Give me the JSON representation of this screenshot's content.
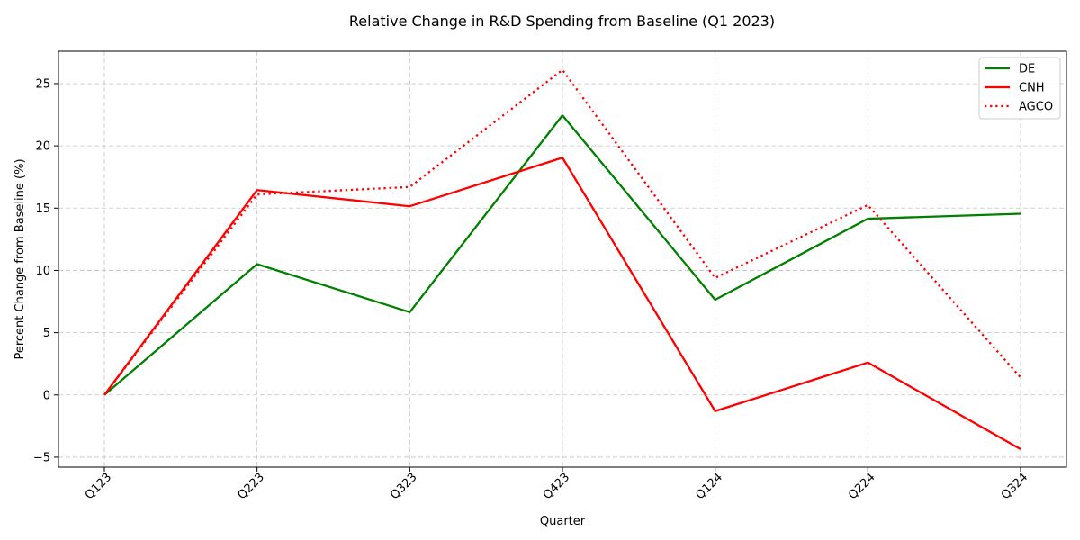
{
  "chart_data": {
    "type": "line",
    "title": "Relative Change in R&D Spending from Baseline (Q1 2023)",
    "xlabel": "Quarter",
    "ylabel": "Percent Change from Baseline (%)",
    "categories": [
      "Q123",
      "Q223",
      "Q323",
      "Q423",
      "Q124",
      "Q224",
      "Q324"
    ],
    "ylim": [
      -5.8,
      27.6
    ],
    "yticks": [
      -5,
      0,
      5,
      10,
      15,
      20,
      25
    ],
    "grid": true,
    "legend_position": "top-right",
    "series": [
      {
        "name": "DE",
        "color": "#008000",
        "style": "solid",
        "values": [
          0,
          10.5,
          6.65,
          22.45,
          7.65,
          14.15,
          14.55
        ]
      },
      {
        "name": "CNH",
        "color": "#ff0000",
        "style": "solid",
        "values": [
          0,
          16.45,
          15.15,
          19.05,
          -1.3,
          2.6,
          -4.35
        ]
      },
      {
        "name": "AGCO",
        "color": "#ff0000",
        "style": "dotted",
        "values": [
          0,
          16.1,
          16.7,
          26.1,
          9.4,
          15.25,
          1.4
        ]
      }
    ]
  }
}
